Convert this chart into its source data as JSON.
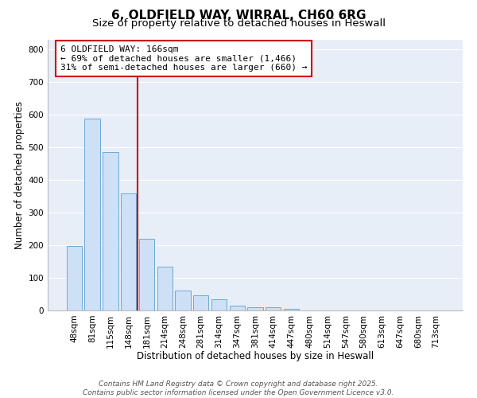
{
  "title": "6, OLDFIELD WAY, WIRRAL, CH60 6RG",
  "subtitle": "Size of property relative to detached houses in Heswall",
  "xlabel": "Distribution of detached houses by size in Heswall",
  "ylabel": "Number of detached properties",
  "categories": [
    "48sqm",
    "81sqm",
    "115sqm",
    "148sqm",
    "181sqm",
    "214sqm",
    "248sqm",
    "281sqm",
    "314sqm",
    "347sqm",
    "381sqm",
    "414sqm",
    "447sqm",
    "480sqm",
    "514sqm",
    "547sqm",
    "580sqm",
    "613sqm",
    "647sqm",
    "680sqm",
    "713sqm"
  ],
  "values": [
    197,
    588,
    487,
    358,
    219,
    135,
    62,
    46,
    35,
    15,
    10,
    10,
    5,
    0,
    0,
    0,
    0,
    0,
    0,
    0,
    0
  ],
  "bar_color": "#cde0f5",
  "bar_edge_color": "#6aaad4",
  "vline_x": 3.5,
  "vline_color": "#cc0000",
  "annotation_line1": "6 OLDFIELD WAY: 166sqm",
  "annotation_line2": "← 69% of detached houses are smaller (1,466)",
  "annotation_line3": "31% of semi-detached houses are larger (660) →",
  "ylim": [
    0,
    830
  ],
  "yticks": [
    0,
    100,
    200,
    300,
    400,
    500,
    600,
    700,
    800
  ],
  "plot_bg_color": "#e8eef8",
  "fig_bg_color": "#ffffff",
  "grid_color": "#ffffff",
  "footer1": "Contains HM Land Registry data © Crown copyright and database right 2025.",
  "footer2": "Contains public sector information licensed under the Open Government Licence v3.0.",
  "title_fontsize": 11,
  "subtitle_fontsize": 9.5,
  "axis_label_fontsize": 8.5,
  "tick_fontsize": 7.5,
  "annotation_fontsize": 8,
  "footer_fontsize": 6.5
}
